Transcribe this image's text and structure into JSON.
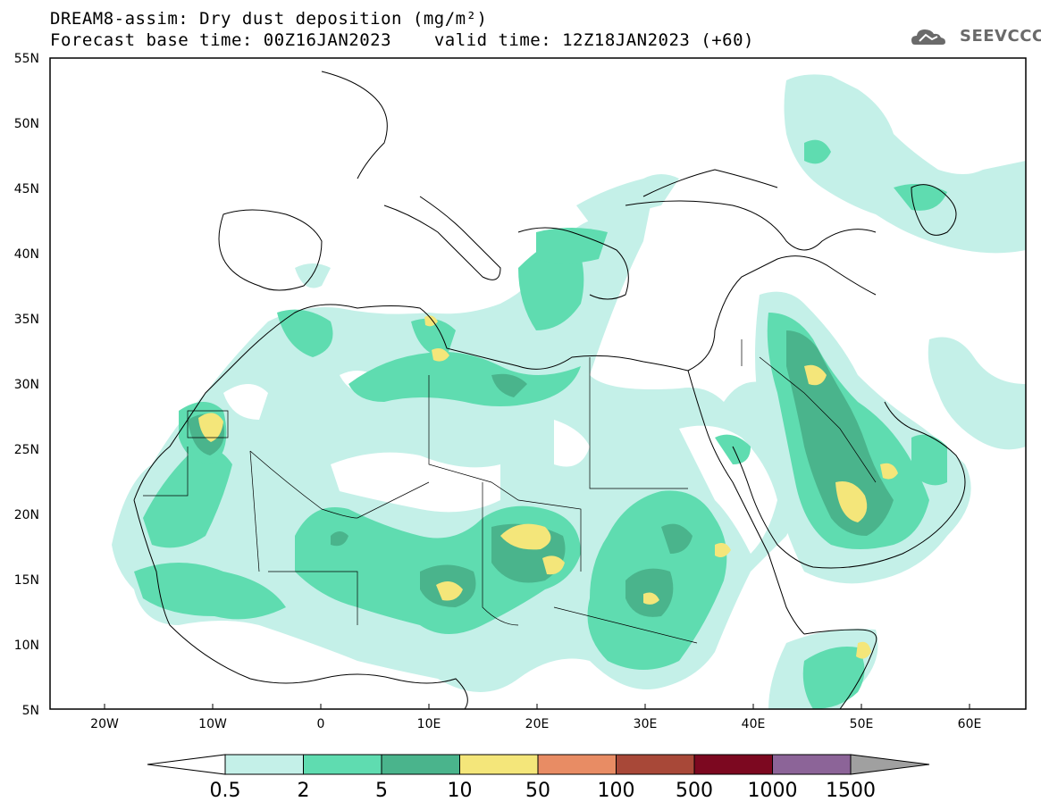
{
  "header": {
    "line1": "DREAM8-assim: Dry dust deposition (mg/m²)",
    "line2_left": "Forecast base time: 00Z16JAN2023",
    "line2_right": "valid time: 12Z18JAN2023 (+60)"
  },
  "logo": {
    "text": "SEEVCCC",
    "icon": "cloud-icon"
  },
  "axes": {
    "lat_labels": [
      "55N",
      "50N",
      "45N",
      "40N",
      "35N",
      "30N",
      "25N",
      "20N",
      "15N",
      "10N",
      "5N"
    ],
    "lon_labels": [
      "20W",
      "10W",
      "0",
      "10E",
      "20E",
      "30E",
      "40E",
      "50E",
      "60E"
    ]
  },
  "colorbar": {
    "labels": [
      "0.5",
      "2",
      "5",
      "10",
      "50",
      "100",
      "500",
      "1000",
      "1500"
    ],
    "colors": [
      "#c4f0e8",
      "#5fdcb0",
      "#4ab48c",
      "#f4e67a",
      "#e88c64",
      "#a84838",
      "#7c0820",
      "#8c6498",
      "#a0a0a0"
    ],
    "under_color": "#ffffff",
    "over_color": "#a0a0a0"
  },
  "map": {
    "background": "#ffffff",
    "coastline_color": "#000000",
    "level_colors": [
      "#c4f0e8",
      "#5fdcb0",
      "#4ab48c",
      "#f4e67a"
    ]
  }
}
